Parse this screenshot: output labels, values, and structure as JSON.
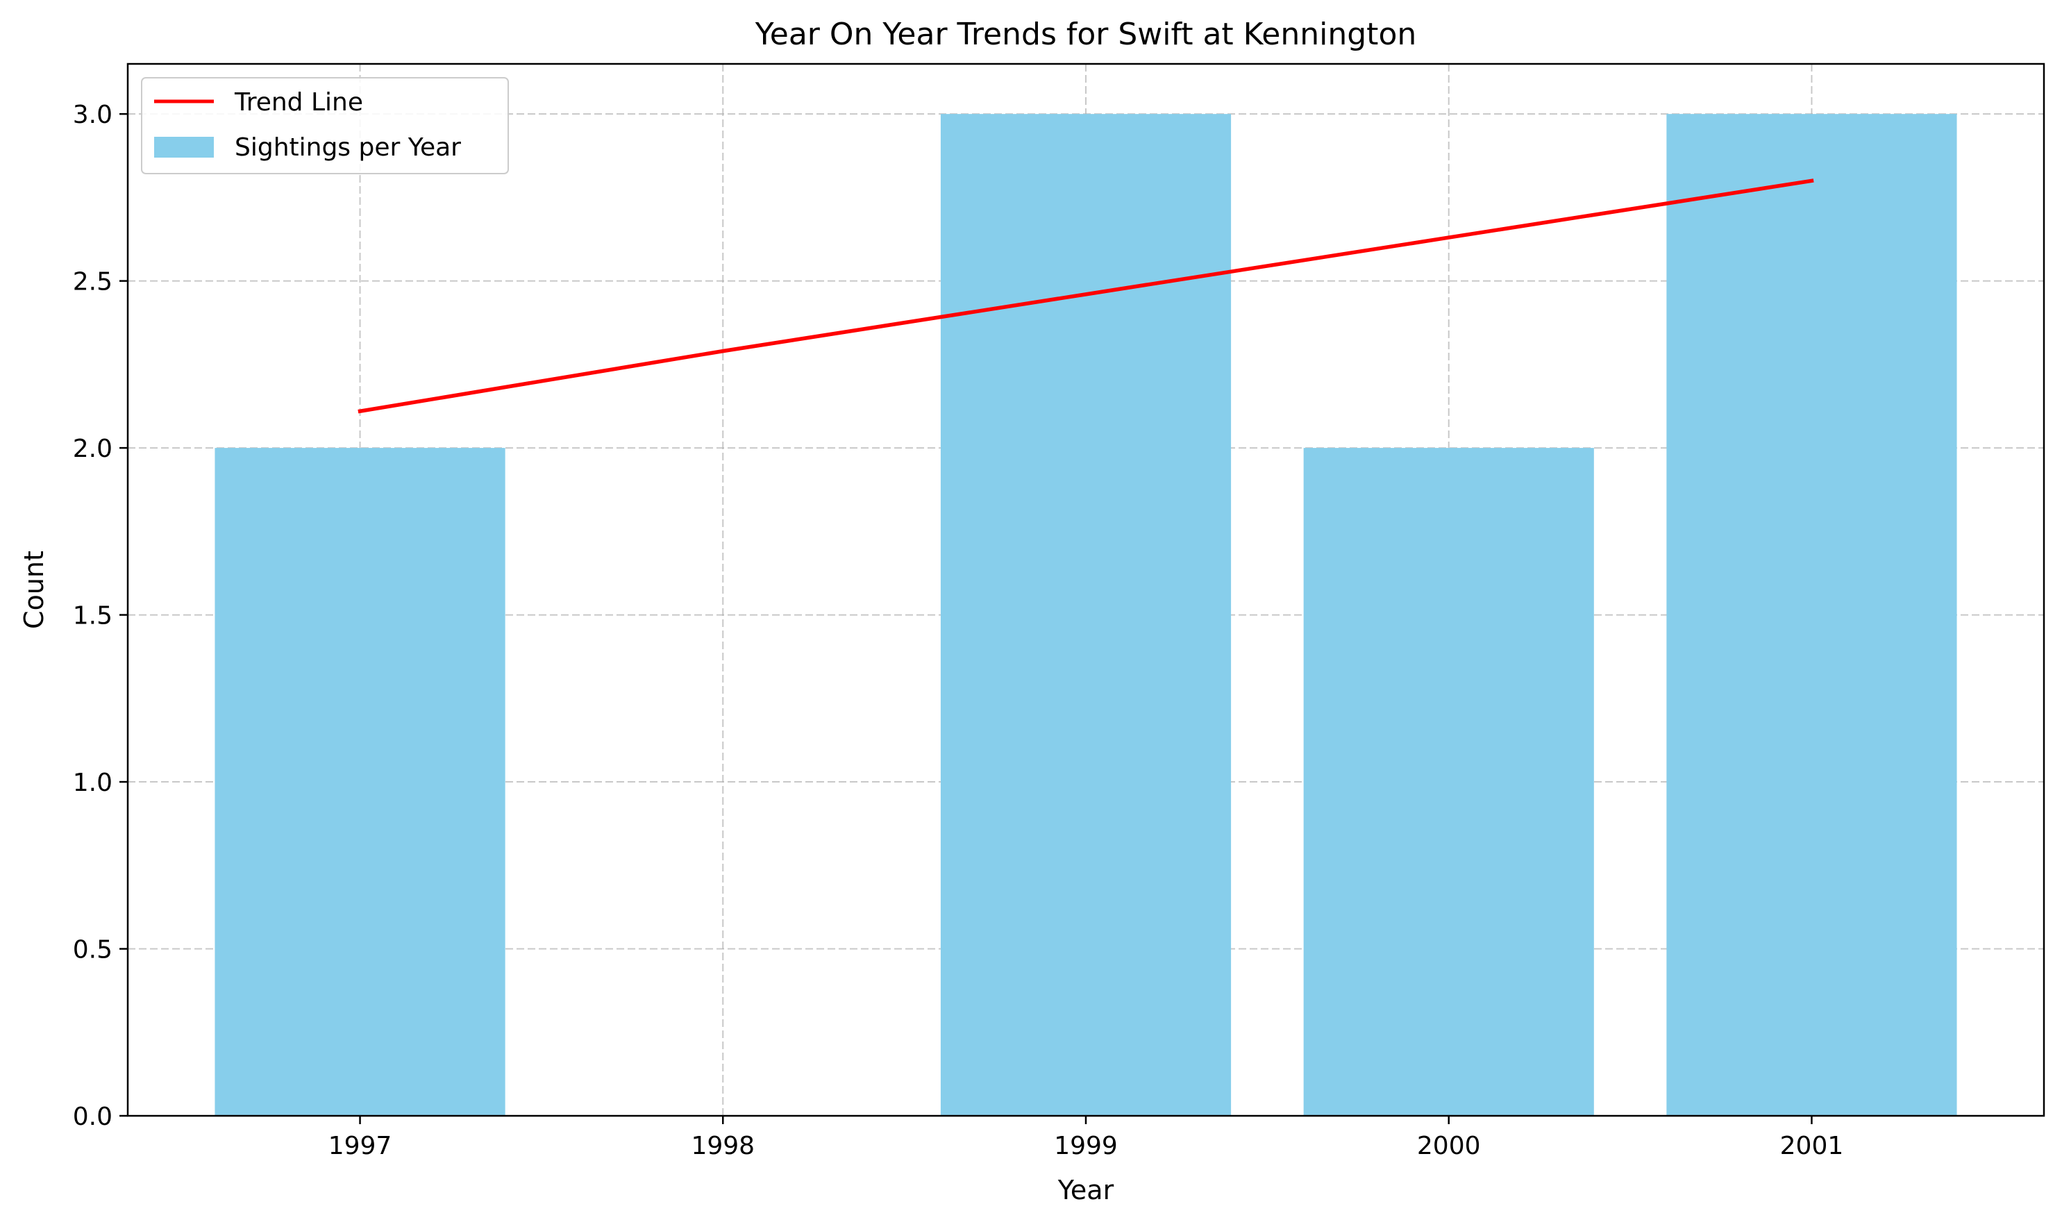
{
  "chart_data": {
    "type": "bar",
    "title": "Year On Year Trends for Swift at Kennington",
    "xlabel": "Year",
    "ylabel": "Count",
    "categories": [
      "1997",
      "1998",
      "1999",
      "2000",
      "2001"
    ],
    "x": [
      1997,
      1998,
      1999,
      2000,
      2001
    ],
    "series": [
      {
        "name": "Sightings per Year",
        "kind": "bar",
        "color": "#87CEEB",
        "values": [
          2,
          0,
          3,
          2,
          3
        ]
      },
      {
        "name": "Trend Line",
        "kind": "line",
        "color": "#FF0000",
        "values": [
          2.11,
          2.29,
          2.46,
          2.63,
          2.8
        ]
      }
    ],
    "xlim": [
      1996.36,
      2001.64
    ],
    "ylim": [
      0,
      3.15
    ],
    "yticks": [
      0.0,
      0.5,
      1.0,
      1.5,
      2.0,
      2.5,
      3.0
    ],
    "ytick_labels": [
      "0.0",
      "0.5",
      "1.0",
      "1.5",
      "2.0",
      "2.5",
      "3.0"
    ],
    "grid": true,
    "legend_position": "top-left"
  }
}
